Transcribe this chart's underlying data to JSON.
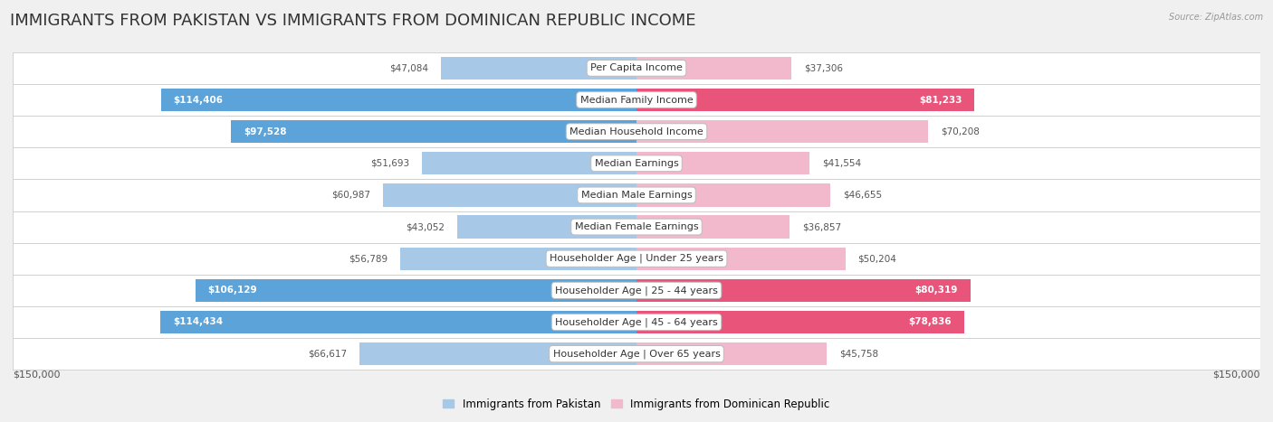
{
  "title": "IMMIGRANTS FROM PAKISTAN VS IMMIGRANTS FROM DOMINICAN REPUBLIC INCOME",
  "source": "Source: ZipAtlas.com",
  "categories": [
    "Per Capita Income",
    "Median Family Income",
    "Median Household Income",
    "Median Earnings",
    "Median Male Earnings",
    "Median Female Earnings",
    "Householder Age | Under 25 years",
    "Householder Age | 25 - 44 years",
    "Householder Age | 45 - 64 years",
    "Householder Age | Over 65 years"
  ],
  "pakistan_values": [
    47084,
    114406,
    97528,
    51693,
    60987,
    43052,
    56789,
    106129,
    114434,
    66617
  ],
  "dominican_values": [
    37306,
    81233,
    70208,
    41554,
    46655,
    36857,
    50204,
    80319,
    78836,
    45758
  ],
  "pakistan_labels": [
    "$47,084",
    "$114,406",
    "$97,528",
    "$51,693",
    "$60,987",
    "$43,052",
    "$56,789",
    "$106,129",
    "$114,434",
    "$66,617"
  ],
  "dominican_labels": [
    "$37,306",
    "$81,233",
    "$70,208",
    "$41,554",
    "$46,655",
    "$36,857",
    "$50,204",
    "$80,319",
    "$78,836",
    "$45,758"
  ],
  "pakistan_color_light": "#a8c8e8",
  "pakistan_color_dark": "#5ba3d9",
  "dominican_color_light": "#f2b8cc",
  "dominican_color_dark": "#e8547a",
  "background_color": "#f0f0f0",
  "row_bg_color": "#ffffff",
  "row_alt_color": "#f7f7f7",
  "max_value": 150000,
  "legend_pakistan": "Immigrants from Pakistan",
  "legend_dominican": "Immigrants from Dominican Republic",
  "xlabel_left": "$150,000",
  "xlabel_right": "$150,000",
  "title_fontsize": 13,
  "label_fontsize": 8,
  "value_fontsize": 7.5,
  "threshold_for_dark_pak": 75000,
  "threshold_for_dark_dom": 75000,
  "threshold_inside_pak": 75000,
  "threshold_inside_dom": 75000
}
